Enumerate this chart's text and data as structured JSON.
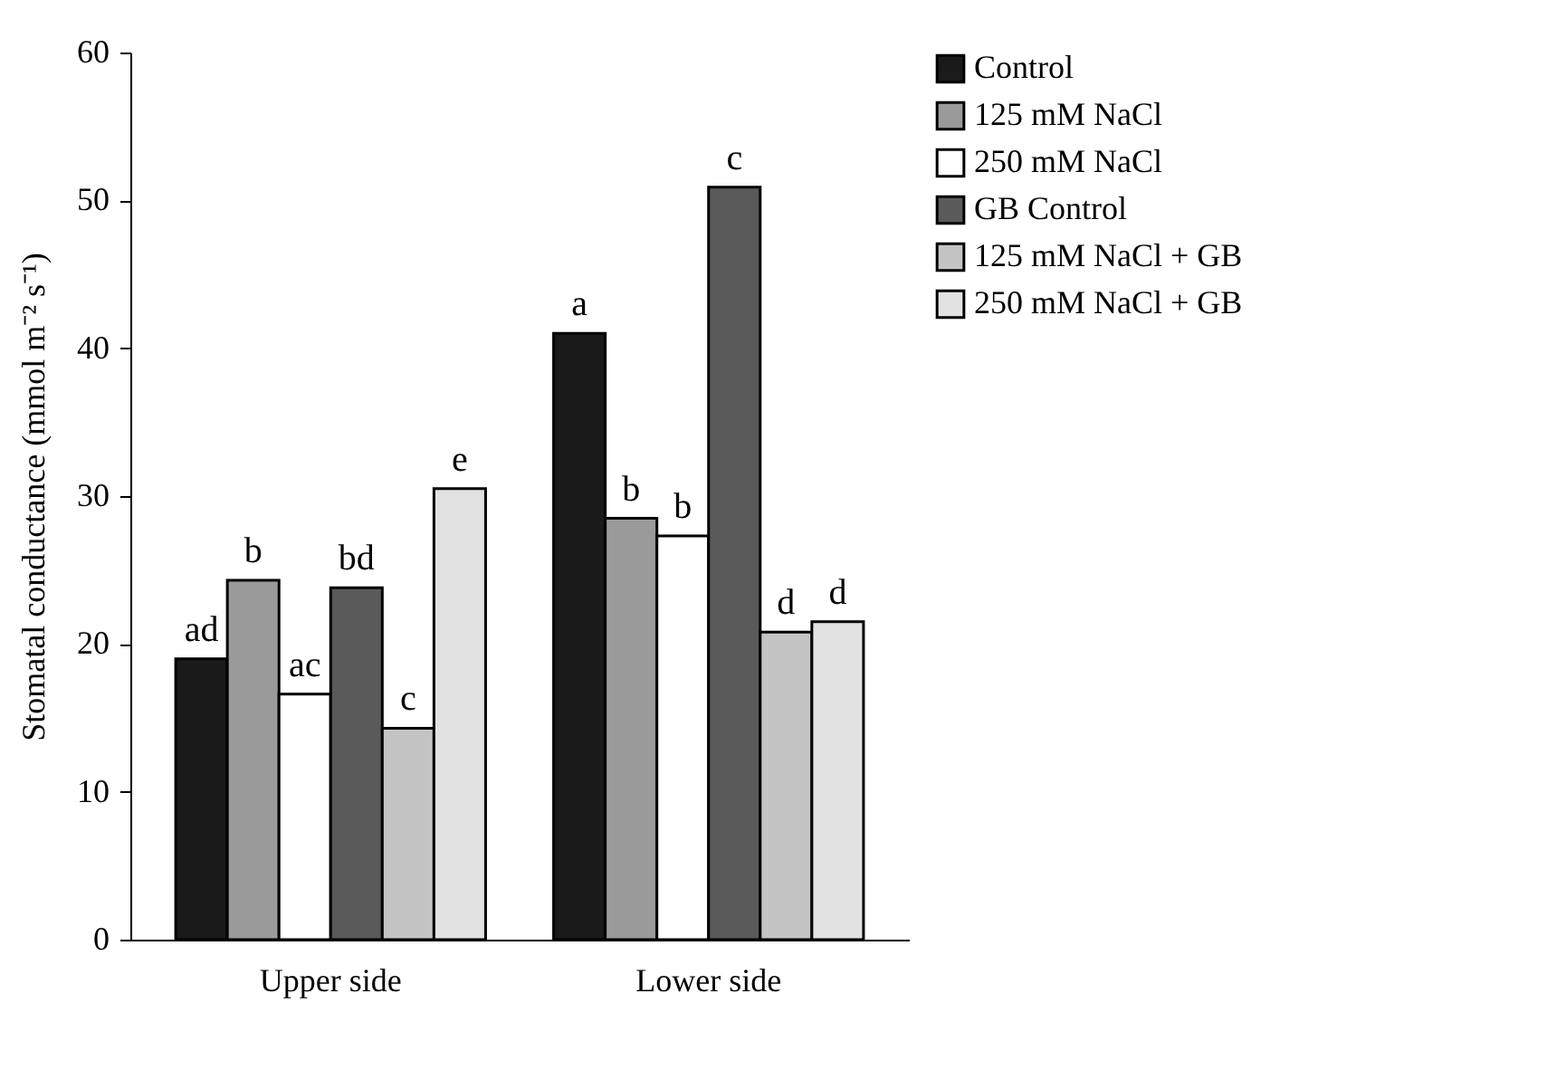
{
  "chart_data": {
    "type": "bar",
    "ylabel": "Stomatal conductance (mmol m⁻² s⁻¹)",
    "categories": [
      "Upper side",
      "Lower side"
    ],
    "series": [
      {
        "name": "Control",
        "color": "#1a1a1a",
        "values": [
          19.0,
          41.0
        ]
      },
      {
        "name": "125 mM NaCl",
        "color": "#9a9a9a",
        "values": [
          24.3,
          28.5
        ]
      },
      {
        "name": "250 mM  NaCl",
        "color": "#ffffff",
        "values": [
          16.6,
          27.3
        ]
      },
      {
        "name": "GB Control",
        "color": "#5a5a5a",
        "values": [
          23.8,
          50.9
        ]
      },
      {
        "name": "125 mM NaCl + GB",
        "color": "#c4c4c4",
        "values": [
          14.3,
          20.8
        ]
      },
      {
        "name": "250 mM  NaCl + GB",
        "color": "#e2e2e2",
        "values": [
          30.5,
          21.5
        ]
      }
    ],
    "ylim": [
      0,
      60
    ],
    "yticks": [
      0,
      10,
      20,
      30,
      40,
      50,
      60
    ],
    "grid": false,
    "legend": "top right",
    "annotations": [
      "ad",
      "b",
      "ac",
      "bd",
      "c",
      "e",
      "a",
      "b",
      "b",
      "c",
      "d",
      "d"
    ]
  }
}
